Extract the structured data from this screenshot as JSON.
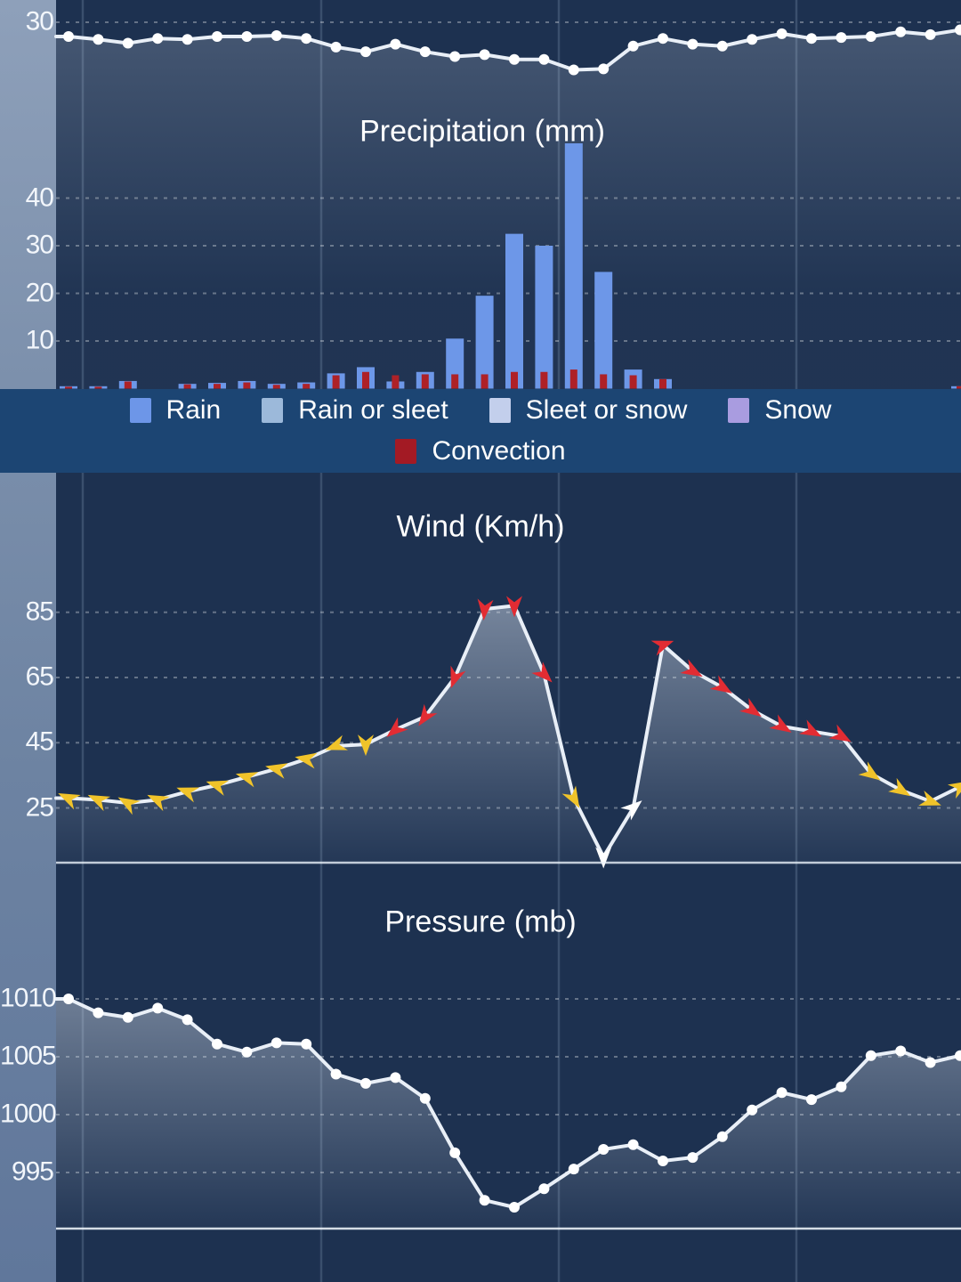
{
  "screen": {
    "description": "weather app meteogram with stacked temperature/precipitation, wind and pressure charts"
  },
  "colors": {
    "plot_background": "#1d3150",
    "legend_band": "#1c4573",
    "gutter_top": "#8ea0ba",
    "gutter_bottom": "#60779b",
    "bar_rain": "#6d97e8",
    "bar_convection": "#ae2127",
    "line_white": "#e9eff7",
    "arrow_yellow": "#f0c32a",
    "arrow_red": "#e22c33",
    "arrow_white": "#ffffff"
  },
  "legend": {
    "items": [
      {
        "label": "Rain",
        "color": "#6d96e8"
      },
      {
        "label": "Rain or sleet",
        "color": "#9cb9da"
      },
      {
        "label": "Sleet or snow",
        "color": "#c3cfec"
      },
      {
        "label": "Snow",
        "color": "#a99ce0"
      },
      {
        "label": "Convection",
        "color": "#a31a24"
      }
    ]
  },
  "chart_data": [
    {
      "type": "line",
      "name": "temperature",
      "title": "",
      "yticks": [
        30
      ],
      "x_count": 31,
      "values": [
        28.5,
        28.2,
        27.8,
        28.3,
        28.2,
        28.5,
        28.5,
        28.6,
        28.3,
        27.4,
        26.9,
        27.7,
        26.9,
        26.4,
        26.6,
        26.1,
        26.1,
        25.0,
        25.1,
        27.5,
        28.3,
        27.7,
        27.5,
        28.2,
        28.8,
        28.3,
        28.4,
        28.5,
        29.0,
        28.7,
        29.2
      ],
      "marker": "white-dot",
      "note_visible": "only bottom of chart visible, single axis tick 30"
    },
    {
      "type": "bar",
      "name": "precipitation",
      "title": "Precipitation (mm)",
      "yticks": [
        40,
        30,
        20,
        10
      ],
      "x_count": 31,
      "series": [
        {
          "name": "rain",
          "values": [
            0.5,
            0.5,
            1.6,
            0,
            1,
            1.2,
            1.6,
            1,
            1.3,
            3.2,
            4.5,
            1.5,
            3.5,
            10.5,
            19.5,
            32.5,
            30,
            51.5,
            24.5,
            4,
            2,
            0,
            0,
            0,
            0,
            0,
            0,
            0,
            0,
            0,
            0.5
          ]
        },
        {
          "name": "convection",
          "values": [
            0.4,
            0.4,
            1.5,
            0,
            0.9,
            1,
            1.3,
            0.8,
            1,
            2.8,
            3.5,
            2.8,
            3,
            3,
            3,
            3.5,
            3.5,
            4,
            3,
            2.8,
            2,
            0,
            0,
            0,
            0,
            0,
            0,
            0,
            0,
            0,
            0.5
          ]
        }
      ]
    },
    {
      "type": "line",
      "name": "wind",
      "title": "Wind (Km/h)",
      "yticks": [
        85,
        65,
        45,
        25
      ],
      "x_count": 31,
      "values": [
        28,
        27.5,
        26.5,
        27.5,
        30,
        32,
        34.5,
        37,
        40,
        44,
        44.5,
        49,
        53,
        65,
        86,
        87,
        66,
        28,
        10,
        25,
        75,
        67,
        62,
        55,
        50,
        48.5,
        47,
        35.5,
        30.5,
        27,
        31.5
      ],
      "arrow_directions_deg": [
        205,
        205,
        210,
        205,
        200,
        198,
        196,
        193,
        190,
        160,
        90,
        140,
        125,
        110,
        95,
        90,
        45,
        60,
        90,
        -40,
        -20,
        30,
        32,
        35,
        32,
        28,
        30,
        35,
        32,
        20,
        -30
      ],
      "arrow_color_rule": {
        "white_max": 25,
        "yellow_max": 45
      }
    },
    {
      "type": "line",
      "name": "pressure",
      "title": "Pressure (mb)",
      "yticks": [
        1010,
        1005,
        1000,
        995
      ],
      "x_count": 31,
      "values": [
        1010,
        1008.8,
        1008.4,
        1009.2,
        1008.2,
        1006.1,
        1005.4,
        1006.2,
        1006.1,
        1003.5,
        1002.7,
        1003.2,
        1001.4,
        996.7,
        992.6,
        992,
        993.6,
        995.3,
        997,
        997.4,
        996,
        996.3,
        998.1,
        1000.4,
        1001.9,
        1001.3,
        1002.4,
        1005.1,
        1005.5,
        1004.5,
        1005.1
      ],
      "marker": "white-dot"
    }
  ]
}
